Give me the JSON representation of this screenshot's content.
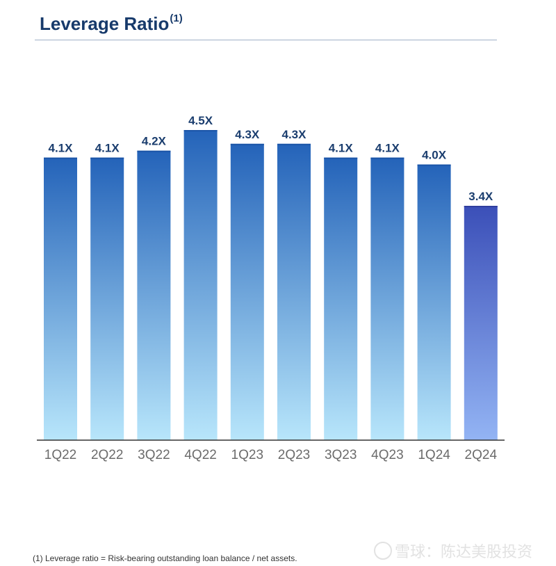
{
  "header": {
    "title": "Leverage Ratio",
    "title_note": "(1)"
  },
  "chart_data": {
    "type": "bar",
    "categories": [
      "1Q22",
      "2Q22",
      "3Q22",
      "4Q22",
      "1Q23",
      "2Q23",
      "3Q23",
      "4Q23",
      "1Q24",
      "2Q24"
    ],
    "values": [
      4.1,
      4.1,
      4.2,
      4.5,
      4.3,
      4.3,
      4.1,
      4.1,
      4.0,
      3.4
    ],
    "labels": [
      "4.1X",
      "4.1X",
      "4.2X",
      "4.5X",
      "4.3X",
      "4.3X",
      "4.1X",
      "4.1X",
      "4.0X",
      "3.4X"
    ],
    "title": "Leverage Ratio",
    "xlabel": "",
    "ylabel": "",
    "ylim": [
      0,
      4.5
    ],
    "grid": false,
    "legend": "none",
    "colors": {
      "bar_top": "#2463b9",
      "bar_bottom": "#b8e6fb",
      "highlight_top": "#3b4fb8",
      "highlight_bottom": "#93b4f4",
      "label": "#1a3d6e",
      "tick": "#6b6b6b",
      "axis": "#333333"
    },
    "highlight_index": 9
  },
  "footnote": {
    "text": "(1) Leverage ratio = Risk-bearing outstanding loan balance / net assets."
  },
  "watermark": {
    "text": "雪球：陈达美股投资"
  }
}
